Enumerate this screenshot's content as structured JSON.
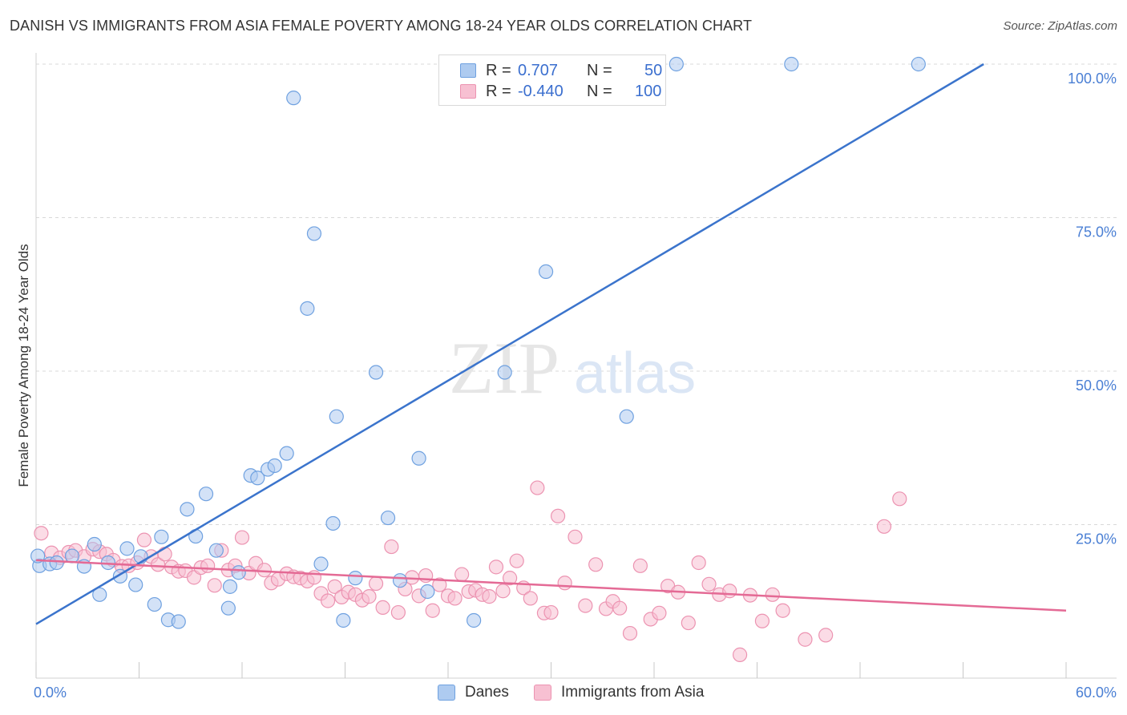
{
  "title": "DANISH VS IMMIGRANTS FROM ASIA FEMALE POVERTY AMONG 18-24 YEAR OLDS CORRELATION CHART",
  "source": "Source: ZipAtlas.com",
  "watermark": {
    "part1": "ZIP",
    "part2": "atlas"
  },
  "legend": {
    "rows": [
      {
        "r_label": "R =",
        "r_value": "0.707",
        "n_label": "N =",
        "n_value": "50"
      },
      {
        "r_label": "R =",
        "r_value": "-0.440",
        "n_label": "N =",
        "n_value": "100"
      }
    ]
  },
  "colors": {
    "blue_fill": "#aecbf0",
    "blue_stroke": "#6fa1e0",
    "blue_line": "#3b74cc",
    "pink_fill": "#f7c0d2",
    "pink_stroke": "#ec93b1",
    "pink_line": "#e46a95",
    "grid": "#d8d8d8",
    "tick_label": "#4a7fd4"
  },
  "chart_data": {
    "type": "scatter",
    "title": "DANISH VS IMMIGRANTS FROM ASIA FEMALE POVERTY AMONG 18-24 YEAR OLDS CORRELATION CHART",
    "xlabel": "",
    "ylabel": "Female Poverty Among 18-24 Year Olds",
    "xlim": [
      0,
      60
    ],
    "ylim": [
      0,
      100
    ],
    "x_tick_labels": [
      "0.0%",
      "60.0%"
    ],
    "y_ticks": [
      25,
      50,
      75,
      100
    ],
    "y_tick_labels": [
      "25.0%",
      "50.0%",
      "75.0%",
      "100.0%"
    ],
    "grid": true,
    "legend_position": "top-center",
    "series": [
      {
        "name": "Danes",
        "r": 0.707,
        "n": 50,
        "trend": [
          [
            0,
            8.8
          ],
          [
            55.2,
            100
          ]
        ],
        "points": [
          [
            0.2,
            18.3
          ],
          [
            0.8,
            18.6
          ],
          [
            1.2,
            18.8
          ],
          [
            2.1,
            19.9
          ],
          [
            2.8,
            18.2
          ],
          [
            3.4,
            21.8
          ],
          [
            3.7,
            13.6
          ],
          [
            4.2,
            18.8
          ],
          [
            4.9,
            16.6
          ],
          [
            5.3,
            21.1
          ],
          [
            5.8,
            15.2
          ],
          [
            6.1,
            19.8
          ],
          [
            6.9,
            12.0
          ],
          [
            7.3,
            23.0
          ],
          [
            7.7,
            9.5
          ],
          [
            8.3,
            9.2
          ],
          [
            8.8,
            27.5
          ],
          [
            9.3,
            23.1
          ],
          [
            9.9,
            30.0
          ],
          [
            10.5,
            20.8
          ],
          [
            11.2,
            11.4
          ],
          [
            11.3,
            14.9
          ],
          [
            11.8,
            17.2
          ],
          [
            12.5,
            33.0
          ],
          [
            12.9,
            32.6
          ],
          [
            13.5,
            34.0
          ],
          [
            13.9,
            34.6
          ],
          [
            14.6,
            36.6
          ],
          [
            15.0,
            94.5
          ],
          [
            15.8,
            60.2
          ],
          [
            16.2,
            72.4
          ],
          [
            16.6,
            18.6
          ],
          [
            17.3,
            25.2
          ],
          [
            17.5,
            42.6
          ],
          [
            17.9,
            9.4
          ],
          [
            18.6,
            16.3
          ],
          [
            19.8,
            49.8
          ],
          [
            20.5,
            26.1
          ],
          [
            21.2,
            15.9
          ],
          [
            22.3,
            35.8
          ],
          [
            22.8,
            14.1
          ],
          [
            25.5,
            9.4
          ],
          [
            27.3,
            49.8
          ],
          [
            27.8,
            100
          ],
          [
            29.7,
            66.2
          ],
          [
            34.4,
            42.6
          ],
          [
            37.3,
            100
          ],
          [
            44.0,
            100
          ],
          [
            51.4,
            100
          ],
          [
            0.1,
            19.9
          ]
        ]
      },
      {
        "name": "Immigrants from Asia",
        "r": -0.44,
        "n": 100,
        "trend": [
          [
            0,
            19.2
          ],
          [
            60,
            11.0
          ]
        ],
        "points": [
          [
            0.3,
            23.6
          ],
          [
            0.9,
            20.4
          ],
          [
            1.4,
            19.6
          ],
          [
            1.9,
            20.5
          ],
          [
            2.3,
            20.8
          ],
          [
            2.8,
            19.8
          ],
          [
            3.3,
            21.0
          ],
          [
            3.7,
            20.6
          ],
          [
            4.1,
            20.2
          ],
          [
            4.5,
            19.2
          ],
          [
            5.0,
            18.2
          ],
          [
            5.4,
            18.3
          ],
          [
            5.9,
            18.8
          ],
          [
            6.3,
            22.5
          ],
          [
            6.7,
            19.8
          ],
          [
            7.1,
            18.5
          ],
          [
            7.5,
            20.2
          ],
          [
            7.9,
            18.1
          ],
          [
            8.3,
            17.4
          ],
          [
            8.7,
            17.5
          ],
          [
            9.2,
            16.4
          ],
          [
            9.6,
            18.0
          ],
          [
            10.0,
            18.3
          ],
          [
            10.4,
            15.1
          ],
          [
            10.8,
            20.8
          ],
          [
            11.2,
            17.6
          ],
          [
            11.6,
            18.3
          ],
          [
            12.0,
            22.9
          ],
          [
            12.4,
            17.1
          ],
          [
            12.8,
            18.7
          ],
          [
            13.3,
            17.6
          ],
          [
            13.7,
            15.5
          ],
          [
            14.1,
            16.1
          ],
          [
            14.6,
            17.0
          ],
          [
            15.0,
            16.5
          ],
          [
            15.4,
            16.3
          ],
          [
            15.8,
            15.8
          ],
          [
            16.2,
            16.4
          ],
          [
            16.6,
            13.8
          ],
          [
            17.0,
            12.6
          ],
          [
            17.4,
            14.9
          ],
          [
            17.8,
            13.2
          ],
          [
            18.2,
            14.0
          ],
          [
            18.6,
            13.6
          ],
          [
            19.0,
            12.7
          ],
          [
            19.4,
            13.3
          ],
          [
            19.8,
            15.4
          ],
          [
            20.2,
            11.5
          ],
          [
            20.7,
            21.4
          ],
          [
            21.1,
            10.7
          ],
          [
            21.5,
            14.5
          ],
          [
            21.9,
            16.4
          ],
          [
            22.3,
            13.4
          ],
          [
            22.7,
            16.7
          ],
          [
            23.1,
            11.0
          ],
          [
            23.5,
            15.2
          ],
          [
            24.0,
            13.4
          ],
          [
            24.4,
            13.0
          ],
          [
            24.8,
            16.9
          ],
          [
            25.2,
            14.1
          ],
          [
            25.6,
            14.3
          ],
          [
            26.0,
            13.6
          ],
          [
            26.4,
            13.3
          ],
          [
            26.8,
            18.1
          ],
          [
            27.2,
            14.2
          ],
          [
            27.6,
            16.3
          ],
          [
            28.0,
            19.1
          ],
          [
            28.4,
            14.7
          ],
          [
            28.8,
            13.0
          ],
          [
            29.2,
            31.0
          ],
          [
            29.6,
            10.6
          ],
          [
            30.0,
            10.7
          ],
          [
            30.4,
            26.4
          ],
          [
            30.8,
            15.5
          ],
          [
            31.4,
            23.0
          ],
          [
            32.0,
            11.8
          ],
          [
            32.6,
            18.5
          ],
          [
            33.2,
            11.3
          ],
          [
            33.6,
            12.5
          ],
          [
            34.0,
            11.4
          ],
          [
            34.6,
            7.3
          ],
          [
            35.2,
            18.3
          ],
          [
            35.8,
            9.6
          ],
          [
            36.3,
            10.6
          ],
          [
            36.8,
            15.0
          ],
          [
            37.4,
            14.0
          ],
          [
            38.0,
            9.0
          ],
          [
            38.6,
            18.8
          ],
          [
            39.2,
            15.3
          ],
          [
            39.8,
            13.6
          ],
          [
            40.4,
            14.2
          ],
          [
            41.0,
            3.8
          ],
          [
            41.6,
            13.5
          ],
          [
            42.3,
            9.3
          ],
          [
            42.9,
            13.6
          ],
          [
            43.5,
            11.0
          ],
          [
            44.8,
            6.3
          ],
          [
            46.0,
            7.0
          ],
          [
            49.4,
            24.7
          ],
          [
            50.3,
            29.2
          ]
        ]
      }
    ]
  }
}
